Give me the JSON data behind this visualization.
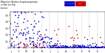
{
  "title": "Milwaukee Weather Evapotranspiration\nvs Rain per Day\n(Inches)",
  "legend_labels": [
    "Evapotranspiration",
    "Rain"
  ],
  "legend_colors": [
    "#0000cc",
    "#cc0000"
  ],
  "bg_color": "#ffffff",
  "grid_color": "#888888",
  "ylim": [
    0,
    0.55
  ],
  "xlim": [
    0,
    364
  ],
  "et_color": "#0000cc",
  "rain_color": "#cc0000",
  "black_color": "#000000",
  "marker_size": 1.5,
  "months": [
    "J",
    "F",
    "M",
    "A",
    "M",
    "J",
    "J",
    "A",
    "S",
    "O",
    "N",
    "D"
  ],
  "month_positions": [
    0,
    31,
    59,
    90,
    120,
    151,
    181,
    212,
    243,
    273,
    304,
    334
  ],
  "yticks": [
    0.0,
    0.1,
    0.2,
    0.3,
    0.4,
    0.5
  ],
  "ytick_labels": [
    "0",
    "0.1",
    "0.2",
    "0.3",
    "0.4",
    "0.5"
  ]
}
